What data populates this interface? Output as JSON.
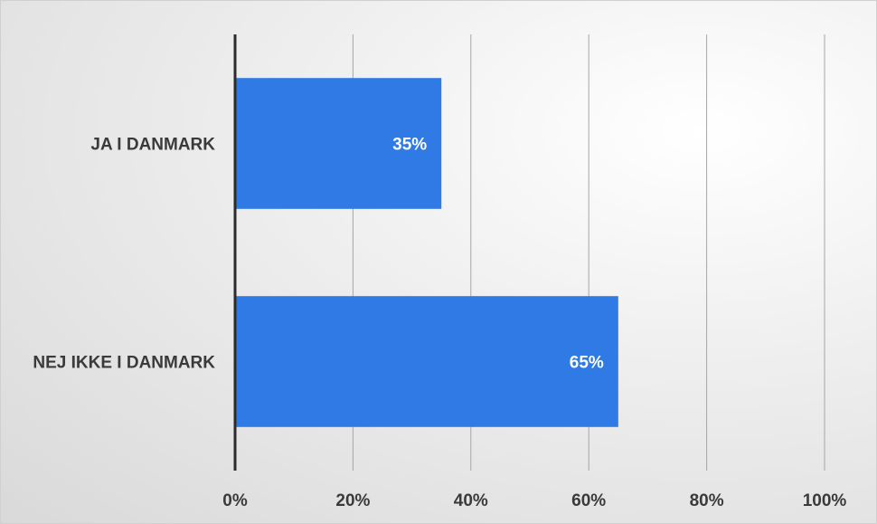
{
  "chart_data": {
    "type": "bar",
    "orientation": "horizontal",
    "categories": [
      "JA I DANMARK",
      "NEJ IKKE I DANMARK"
    ],
    "values": [
      35,
      65
    ],
    "data_labels": [
      "35%",
      "65%"
    ],
    "xlim": [
      0,
      100
    ],
    "x_ticks": [
      0,
      20,
      40,
      60,
      80,
      100
    ],
    "x_tick_labels": [
      "0%",
      "20%",
      "40%",
      "60%",
      "80%",
      "100%"
    ],
    "title": "",
    "xlabel": "",
    "ylabel": "",
    "grid": "vertical",
    "legend": "none",
    "colors": {
      "bar": "#2f7ae5",
      "axis": "#2b2b2b",
      "grid": "#a6a6a6",
      "text": "#3a3a3a",
      "data_label": "#ffffff"
    }
  }
}
